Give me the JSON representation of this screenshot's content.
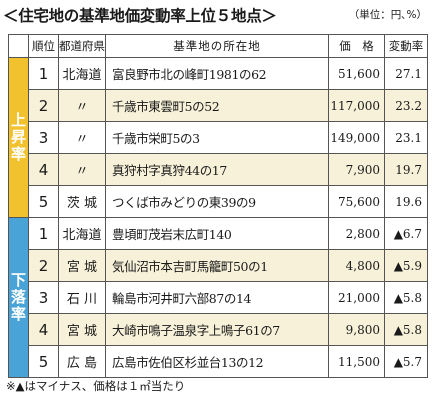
{
  "title": "＜住宅地の基準地価変動率上位５地点＞",
  "unit": "（単位：円､%）",
  "headers": {
    "rank": "順位",
    "prefecture": "都道府県",
    "address": "基準地の所在地",
    "price": "価　格",
    "rate": "変動率"
  },
  "groups": {
    "up": [
      "上",
      "昇",
      "率"
    ],
    "down": [
      "下",
      "落",
      "率"
    ]
  },
  "up_rows": [
    {
      "rank": "1",
      "pref": "北海道",
      "addr": "富良野市北の峰町1981の62",
      "price": "51,600",
      "rate": "27.1"
    },
    {
      "rank": "2",
      "pref": "〃",
      "addr": "千歳市東雲町5の52",
      "price": "117,000",
      "rate": "23.2"
    },
    {
      "rank": "3",
      "pref": "〃",
      "addr": "千歳市栄町5の3",
      "price": "149,000",
      "rate": "23.1"
    },
    {
      "rank": "4",
      "pref": "〃",
      "addr": "真狩村字真狩44の17",
      "price": "7,900",
      "rate": "19.7"
    },
    {
      "rank": "5",
      "pref": "茨 城",
      "addr": "つくば市みどりの東39の9",
      "price": "75,600",
      "rate": "19.6"
    }
  ],
  "down_rows": [
    {
      "rank": "1",
      "pref": "北海道",
      "addr": "豊頃町茂岩末広町140",
      "price": "2,800",
      "rate": "▲6.7"
    },
    {
      "rank": "2",
      "pref": "宮 城",
      "addr": "気仙沼市本吉町馬籠町50の1",
      "price": "4,800",
      "rate": "▲5.9"
    },
    {
      "rank": "3",
      "pref": "石 川",
      "addr": "輪島市河井町六部87の14",
      "price": "21,000",
      "rate": "▲5.8"
    },
    {
      "rank": "4",
      "pref": "宮 城",
      "addr": "大崎市鳴子温泉字上鳴子61の7",
      "price": "9,800",
      "rate": "▲5.8"
    },
    {
      "rank": "5",
      "pref": "広 島",
      "addr": "広島市佐伯区杉並台13の12",
      "price": "11,500",
      "rate": "▲5.7"
    }
  ],
  "note": "※▲はマイナス、価格は１㎡当たり",
  "colors": {
    "up": "#f2c12e",
    "down": "#4aa3d6",
    "shade": "#f6f1d8"
  }
}
